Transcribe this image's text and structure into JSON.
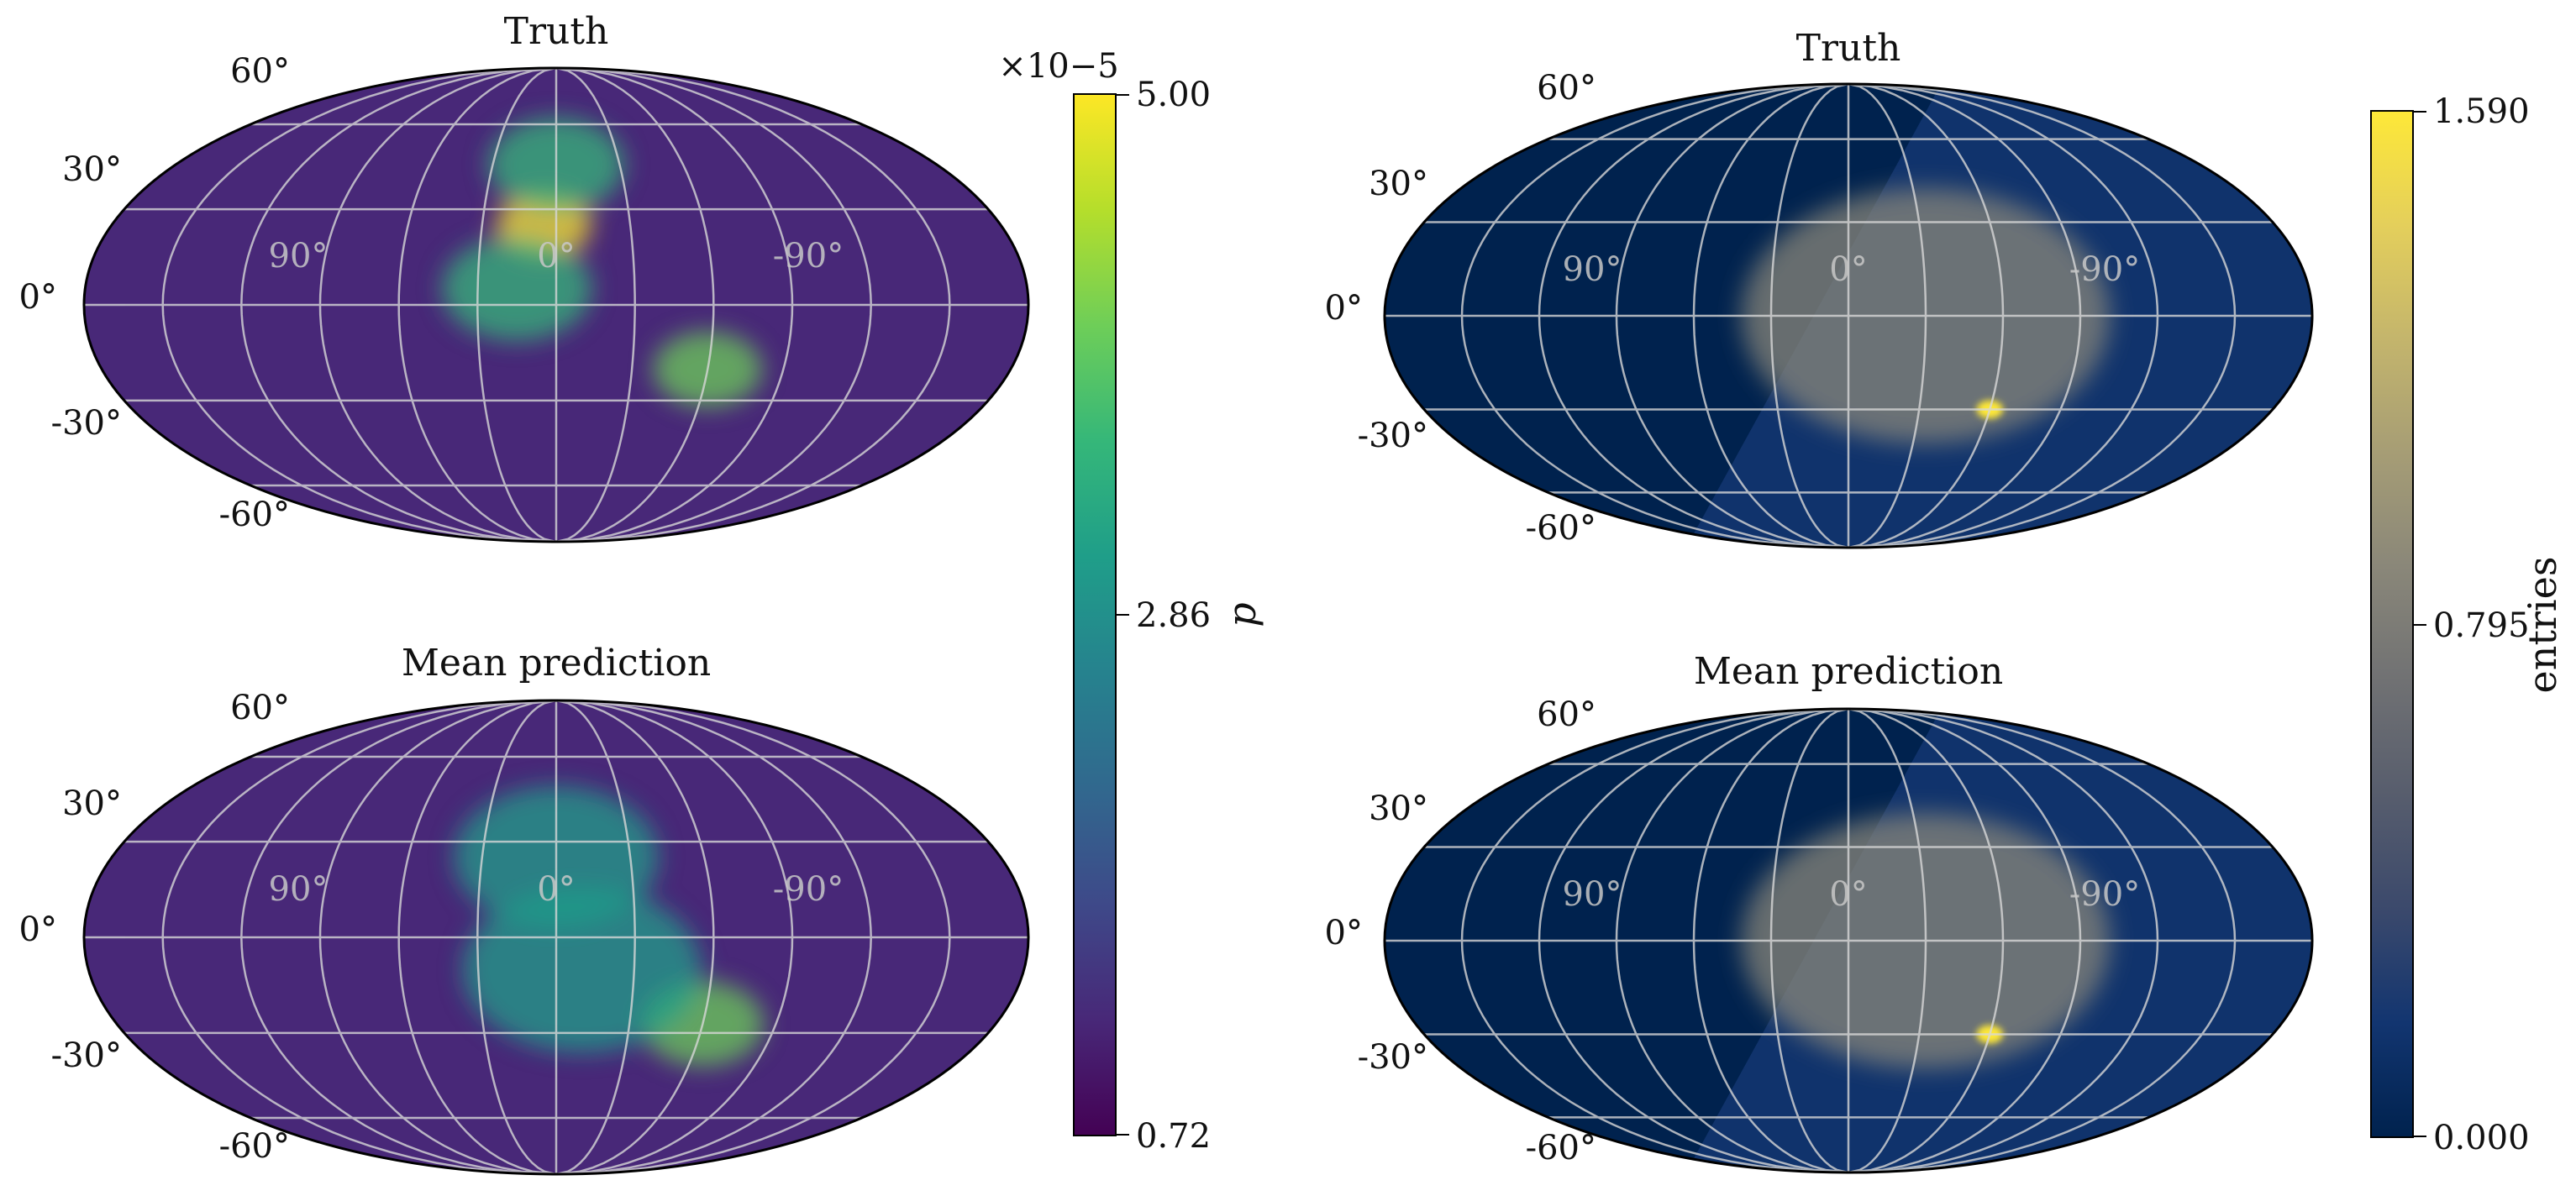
{
  "chart_data": [
    {
      "type": "heatmap",
      "projection": "mollweide",
      "title": "Truth",
      "latitude_labels": [
        "60°",
        "30°",
        "0°",
        "-30°",
        "-60°"
      ],
      "longitude_labels": [
        "90°",
        "0°",
        "-90°"
      ],
      "colormap": "viridis",
      "colorbar_label": "p",
      "colorbar_range": [
        0.72,
        5.0
      ],
      "colorbar_exponent": "×10−5",
      "features": [
        {
          "lon": 5,
          "lat": 25,
          "value": 4.9,
          "spread": 14
        },
        {
          "lon": 0,
          "lat": 45,
          "value": 3.6,
          "spread": 20
        },
        {
          "lon": -60,
          "lat": -20,
          "value": 4.1,
          "spread": 16
        },
        {
          "lon": 15,
          "lat": 5,
          "value": 3.4,
          "spread": 22
        }
      ]
    },
    {
      "type": "heatmap",
      "projection": "mollweide",
      "title": "Mean prediction",
      "latitude_labels": [
        "60°",
        "30°",
        "0°",
        "-30°",
        "-60°"
      ],
      "longitude_labels": [
        "90°",
        "0°",
        "-90°"
      ],
      "colormap": "viridis",
      "colorbar_label": "p",
      "colorbar_range": [
        0.72,
        5.0
      ],
      "features": [
        {
          "lon": -60,
          "lat": -27,
          "value": 3.9,
          "spread": 18
        },
        {
          "lon": 0,
          "lat": 25,
          "value": 3.3,
          "spread": 30
        },
        {
          "lon": -10,
          "lat": -10,
          "value": 2.9,
          "spread": 35
        }
      ]
    },
    {
      "type": "heatmap",
      "projection": "mollweide",
      "title": "Truth",
      "latitude_labels": [
        "60°",
        "30°",
        "0°",
        "-30°",
        "-60°"
      ],
      "longitude_labels": [
        "90°",
        "0°",
        "-90°"
      ],
      "colormap": "cividis",
      "colorbar_label": "entries",
      "colorbar_ticks": [
        "0.000",
        "0.795",
        "1.590"
      ],
      "colorbar_range": [
        0.0,
        1.59
      ],
      "features": [
        {
          "lon": -60,
          "lat": -30,
          "value": 1.59,
          "spread": 4
        },
        {
          "lon": -30,
          "lat": 0,
          "value": 0.9,
          "spread": 55
        }
      ]
    },
    {
      "type": "heatmap",
      "projection": "mollweide",
      "title": "Mean prediction",
      "latitude_labels": [
        "60°",
        "30°",
        "0°",
        "-30°",
        "-60°"
      ],
      "longitude_labels": [
        "90°",
        "0°",
        "-90°"
      ],
      "colormap": "cividis",
      "colorbar_label": "entries",
      "colorbar_range": [
        0.0,
        1.59
      ],
      "features": [
        {
          "lon": -60,
          "lat": -30,
          "value": 1.59,
          "spread": 4
        },
        {
          "lon": -30,
          "lat": 0,
          "value": 0.95,
          "spread": 55
        }
      ]
    }
  ],
  "colorbars": {
    "left": {
      "ticks": [
        "5.00",
        "2.86",
        "0.72"
      ],
      "label": "p",
      "exponent": "×10−5"
    },
    "right": {
      "ticks": [
        "1.590",
        "0.795",
        "0.000"
      ],
      "label": "entries"
    }
  },
  "colors": {
    "viridis": [
      "#440154",
      "#482878",
      "#3e4989",
      "#31688e",
      "#26828e",
      "#1f9e89",
      "#35b779",
      "#6ece58",
      "#b5de2b",
      "#fde725"
    ],
    "cividis": [
      "#00224e",
      "#123570",
      "#3b496c",
      "#575d6d",
      "#707173",
      "#8a8779",
      "#a69d75",
      "#c4b56c",
      "#e4cf5b",
      "#fee838"
    ],
    "grid": "#d8d8d8",
    "outline": "#000000"
  }
}
